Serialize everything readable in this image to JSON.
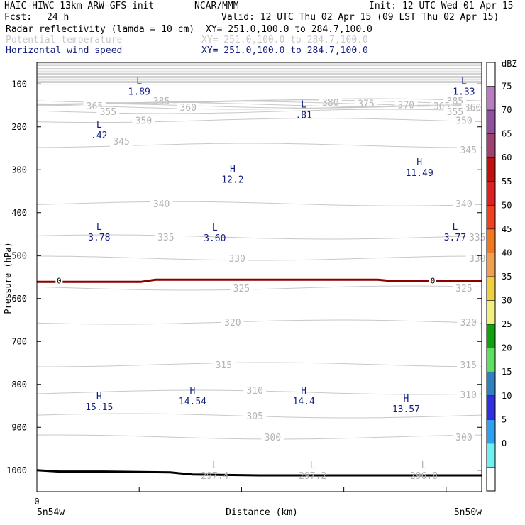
{
  "header": {
    "title": "HAIC-HIWC 13km ARW-GFS init",
    "org": "NCAR/MMM",
    "init": "Init: 12 UTC Wed 01 Apr 15",
    "fcst_label": "Fcst:",
    "fcst_value": "24 h",
    "valid": "Valid: 12 UTC Thu 02 Apr 15 (09 LST Thu 02 Apr 15)",
    "fields": [
      {
        "name": "Radar reflectivity (lamda = 10 cm)",
        "xy": "XY= 251.0,100.0 to 284.7,100.0"
      },
      {
        "name": "Potential temperature",
        "xy": "XY= 251.0,100.0 to 284.7,100.0"
      },
      {
        "name": "Horizontal wind speed",
        "xy": "XY= 251.0,100.0 to 284.7,100.0"
      }
    ]
  },
  "colors": {
    "theta": "#c8c8c8",
    "wind_label": "#101c80",
    "zero_contour": "#8b0000",
    "terrain": "#000000"
  },
  "chart_data": {
    "type": "cross-section",
    "xlabel": "Distance (km)",
    "ylabel": "Pressure (hPa)",
    "x_tick_labels": [
      "0"
    ],
    "x_endpoints": [
      "5n54w",
      "5n50w"
    ],
    "y_ticks": [
      100,
      200,
      300,
      400,
      500,
      600,
      700,
      800,
      900,
      1000
    ],
    "ylim": [
      50,
      1050
    ],
    "xlim": [
      0,
      1
    ],
    "theta_contours": [
      {
        "label": "385",
        "level": 150,
        "labels_at": [
          [
            0.28,
            0.9
          ],
          [
            0.94,
            0.9
          ]
        ]
      },
      {
        "label": "380",
        "level": 160,
        "labels_at": [
          [
            0.66,
            0.93
          ]
        ]
      },
      {
        "label": "375",
        "level": 170,
        "labels_at": [
          [
            0.74,
            0.96
          ]
        ]
      },
      {
        "label": "370",
        "level": 180,
        "labels_at": [
          [
            0.83,
            0.99
          ]
        ]
      },
      {
        "label": "365",
        "level": 190,
        "labels_at": [
          [
            0.13,
            1.02
          ],
          [
            0.91,
            1.02
          ]
        ]
      },
      {
        "label": "360",
        "level": 200,
        "labels_at": [
          [
            0.34,
            1.05
          ],
          [
            0.98,
            1.05
          ]
        ]
      },
      {
        "label": "355",
        "level": 210,
        "labels_at": [
          [
            0.16,
            1.15
          ],
          [
            0.94,
            1.15
          ]
        ]
      },
      {
        "label": "350",
        "level": 220,
        "labels_at": [
          [
            0.24,
            1.36
          ],
          [
            0.96,
            1.36
          ]
        ]
      },
      {
        "label": "345",
        "level": 230,
        "labels_at": [
          [
            0.19,
            1.85
          ],
          [
            0.97,
            2.05
          ]
        ]
      },
      {
        "label": "340",
        "level": 240,
        "labels_at": [
          [
            0.28,
            3.32
          ],
          [
            0.96,
            3.32
          ]
        ]
      },
      {
        "label": "335",
        "level": 250,
        "labels_at": [
          [
            0.29,
            4.1
          ],
          [
            0.99,
            4.1
          ]
        ]
      },
      {
        "label": "330",
        "level": 260,
        "labels_at": [
          [
            0.45,
            4.6
          ],
          [
            1.0,
            4.6
          ]
        ]
      },
      {
        "label": "325",
        "level": 270,
        "labels_at": [
          [
            0.46,
            5.3
          ],
          [
            0.96,
            5.3
          ]
        ]
      },
      {
        "label": "320",
        "level": 280,
        "labels_at": [
          [
            0.44,
            6.1
          ],
          [
            0.97,
            6.1
          ]
        ]
      },
      {
        "label": "315",
        "level": 290,
        "labels_at": [
          [
            0.42,
            7.1
          ],
          [
            0.97,
            7.1
          ]
        ]
      },
      {
        "label": "310",
        "level": 300,
        "labels_at": [
          [
            0.49,
            7.7
          ],
          [
            0.97,
            7.8
          ]
        ]
      },
      {
        "label": "305",
        "level": 305,
        "labels_at": [
          [
            0.49,
            8.3
          ]
        ]
      },
      {
        "label": "300",
        "level": 310,
        "labels_at": [
          [
            0.53,
            8.8
          ],
          [
            0.96,
            8.8
          ]
        ]
      }
    ],
    "wind_extrema": [
      {
        "type": "L",
        "value": "1.89",
        "x": 0.23,
        "p": 100
      },
      {
        "type": "L",
        "value": "1.33",
        "x": 0.96,
        "p": 100
      },
      {
        "type": "L",
        "value": ".81",
        "x": 0.6,
        "p": 155
      },
      {
        "type": "L",
        "value": ".42",
        "x": 0.14,
        "p": 202
      },
      {
        "type": "H",
        "value": "12.2",
        "x": 0.44,
        "p": 305
      },
      {
        "type": "H",
        "value": "11.49",
        "x": 0.86,
        "p": 290
      },
      {
        "type": "L",
        "value": "3.78",
        "x": 0.14,
        "p": 440
      },
      {
        "type": "L",
        "value": "3.60",
        "x": 0.4,
        "p": 442
      },
      {
        "type": "L",
        "value": "3.77",
        "x": 0.94,
        "p": 440
      },
      {
        "type": "H",
        "value": "15.15",
        "x": 0.14,
        "p": 835
      },
      {
        "type": "H",
        "value": "14.54",
        "x": 0.35,
        "p": 822
      },
      {
        "type": "H",
        "value": "14.4",
        "x": 0.6,
        "p": 822
      },
      {
        "type": "H",
        "value": "13.57",
        "x": 0.83,
        "p": 840
      }
    ],
    "surface_extrema": [
      {
        "type": "L",
        "value": "297.4",
        "x": 0.4
      },
      {
        "type": "L",
        "value": "297.2",
        "x": 0.62
      },
      {
        "type": "L",
        "value": "296.8",
        "x": 0.87
      }
    ],
    "zero_dbz_contour": {
      "label": "0",
      "p": 558,
      "labels_at": [
        0.05,
        0.89
      ]
    },
    "terrain_p": [
      [
        0,
        1000
      ],
      [
        0.05,
        1003
      ],
      [
        0.15,
        1003
      ],
      [
        0.3,
        1005
      ],
      [
        0.35,
        1010
      ],
      [
        0.5,
        1012
      ],
      [
        1.0,
        1012
      ]
    ],
    "colorbar": {
      "title": "dBZ",
      "ticks": [
        "75",
        "70",
        "65",
        "60",
        "55",
        "50",
        "45",
        "40",
        "35",
        "30",
        "25",
        "20",
        "15",
        "10",
        "5",
        "0"
      ],
      "colors": [
        "#ffffff",
        "#b87cc0",
        "#9050a0",
        "#a04070",
        "#c01010",
        "#e02020",
        "#f04020",
        "#f07820",
        "#f0a050",
        "#f0d040",
        "#f0f080",
        "#10a010",
        "#60e060",
        "#3080c0",
        "#3030e0",
        "#30a0f0",
        "#70f0f0",
        "#ffffff"
      ]
    }
  }
}
